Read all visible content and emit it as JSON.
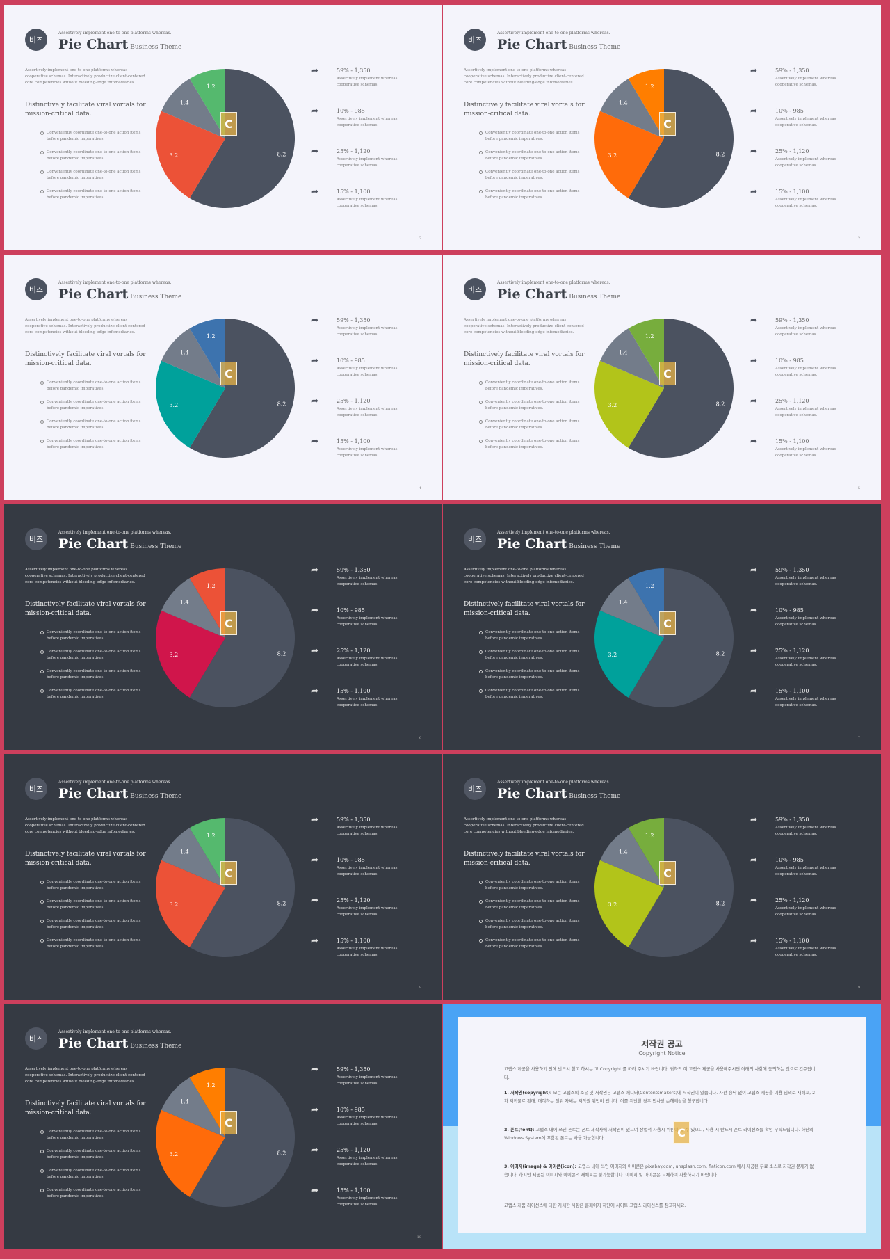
{
  "slide_common": {
    "logo": "비즈",
    "tagline": "Assertively implement one-to-one platforms whereas.",
    "title": "Pie Chart",
    "subtitle": "Business Theme",
    "intro": "Assertively implement one-to-one platforms whereas cooperative schemas. Interactively productize client-centered core competencies without bleeding-edge infomediaries.",
    "heading": "Distinctively facilitate viral vortals for mission-critical data.",
    "bullets": [
      "Conveniently coordinate one-to-one action items before pandemic imperatives.",
      "Conveniently coordinate one-to-one action items before pandemic imperatives.",
      "Conveniently coordinate one-to-one action items before pandemic imperatives.",
      "Conveniently coordinate one-to-one action items before pandemic imperatives."
    ],
    "stats": [
      {
        "value": "59% - 1,350",
        "desc": "Assertively implement whereas cooperative schemas."
      },
      {
        "value": "10% - 985",
        "desc": "Assertively implement whereas cooperative schemas."
      },
      {
        "value": "25% - 1,120",
        "desc": "Assertively implement whereas cooperative schemas."
      },
      {
        "value": "15% - 1,100",
        "desc": "Assertively implement whereas cooperative schemas."
      }
    ],
    "badge": "C"
  },
  "slides": [
    {
      "theme": "light",
      "page": "3",
      "colors": [
        "#4b5260",
        "#ec5237",
        "#737c8a",
        "#55b96e"
      ],
      "badge_color": "#e6a94a"
    },
    {
      "theme": "light",
      "page": "2",
      "colors": [
        "#4b5260",
        "#ff6b0a",
        "#737c8a",
        "#ff7e00"
      ],
      "badge_color": "#e6a94a"
    },
    {
      "theme": "light",
      "page": "4",
      "colors": [
        "#4b5260",
        "#00a19b",
        "#737c8a",
        "#3d73ae"
      ],
      "badge_color": "#e6a94a"
    },
    {
      "theme": "light",
      "page": "5",
      "colors": [
        "#4b5260",
        "#b2c41a",
        "#737c8a",
        "#77ad3d"
      ],
      "badge_color": "#e6a94a"
    },
    {
      "theme": "dark",
      "page": "6",
      "colors": [
        "#4b5260",
        "#d0154b",
        "#737c8a",
        "#ec5237"
      ],
      "badge_color": "#e6a94a"
    },
    {
      "theme": "dark",
      "page": "7",
      "colors": [
        "#4b5260",
        "#00a19b",
        "#737c8a",
        "#3d73ae"
      ],
      "badge_color": "#e6a94a"
    },
    {
      "theme": "dark",
      "page": "8",
      "colors": [
        "#4b5260",
        "#ec5237",
        "#737c8a",
        "#55b96e"
      ],
      "badge_color": "#e6a94a"
    },
    {
      "theme": "dark",
      "page": "9",
      "colors": [
        "#4b5260",
        "#b2c41a",
        "#737c8a",
        "#77ad3d"
      ],
      "badge_color": "#e6a94a"
    },
    {
      "theme": "dark",
      "page": "10",
      "colors": [
        "#4b5260",
        "#ff6b0a",
        "#737c8a",
        "#ff7e00"
      ],
      "badge_color": "#e6a94a"
    }
  ],
  "chart_data": {
    "type": "pie",
    "categories": [
      "8.2",
      "3.2",
      "1.4",
      "1.2"
    ],
    "values": [
      8.2,
      3.2,
      1.4,
      1.2
    ]
  },
  "notice": {
    "title": "저작권 공고",
    "subtitle": "Copyright Notice",
    "intro": "고랩스 제공을 사용하기 전에 반드시 참고 하시는 고 Copyright 를 따라 주시기 바랍니다. 귀하의 이 고랩스 제공을 사용해주시면 아래의 사항에 동의하는 것으로 간주됩니다.",
    "p1_label": "1. 저작권(copyright):",
    "p1": "모든 고랩스의 소유 및 저작권은 고랩스 에디터(Contentsmakers)에 저작권이 있습니다. 사전 승낙 없이 고랩스 제공을 이용 임의로 재배포, 2차 저작물로 판매, 대여하는 행위 자체는 저작권 위반이 됩니다. 이를 위반할 경우 민사상 손해배상을 청구합니다.",
    "p2_label": "2. 폰트(font):",
    "p2": "고랩스 내에 쓰인 폰트는 폰트 제작사에 저작권이 있으며 상업적 사용시 위반이 될 수 있으니, 사용 시 반드시 폰트 라이선스를 확인 부탁드립니다. 하단의 Windows System에 포함된 폰트는 사용 가능합니다.",
    "p3_label": "3. 이미지(image) & 아이콘(icon):",
    "p3": "고랩스 내에 쓰인 이미지와 아이콘은 pixabay.com, unsplash.com, flaticon.com 에서 제공된 무료 소스로 저작권 문제가 없습니다. 하지만 제공된 이미지와 아이콘의 재배포는 불가능합니다. 이미지 및 아이콘은 교체하여 사용하시기 바랍니다.",
    "footer": "고랩스 제품 라이선스에 대한 자세한 사항은 홈페이지 하단에 사이트 고랩스 라이선스를 참고하세요.",
    "badge": "C"
  }
}
